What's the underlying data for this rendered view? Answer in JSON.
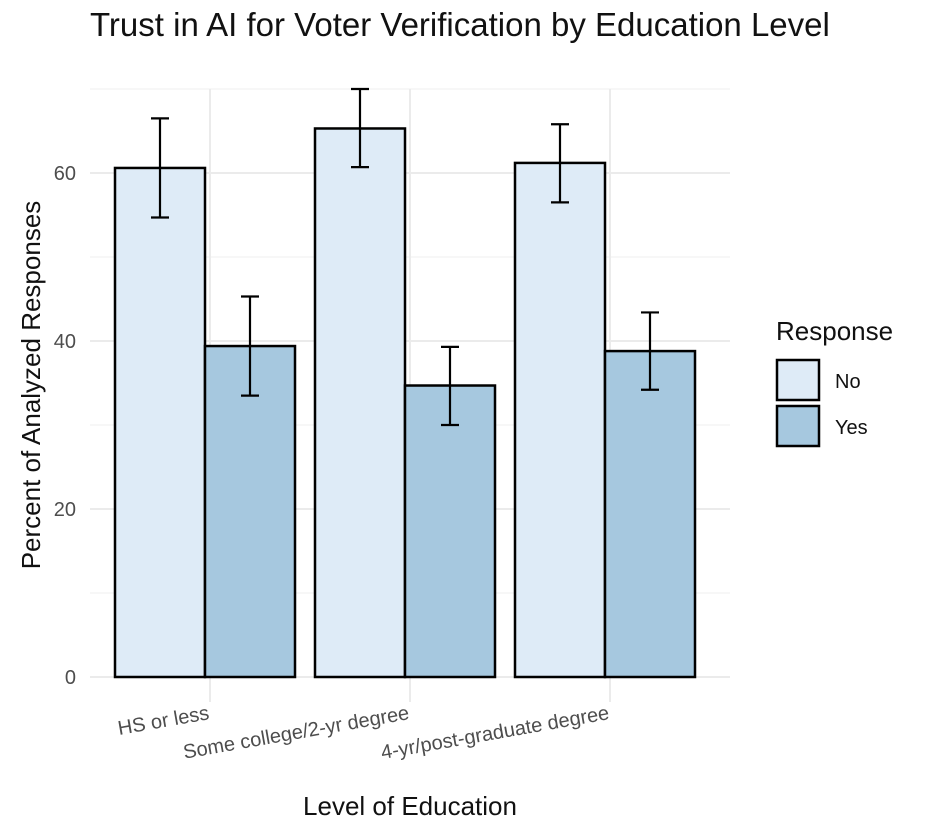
{
  "chart_data": {
    "type": "bar",
    "title": "Trust in AI for Voter Verification by Education Level",
    "xlabel": "Level of Education",
    "ylabel": "Percent of Analyzed Responses",
    "categories": [
      "HS or less",
      "Some college/2-yr degree",
      "4-yr/post-graduate degree"
    ],
    "series": [
      {
        "name": "No",
        "color": "#deebf7",
        "values": [
          60.6,
          65.3,
          61.2
        ],
        "error_low": [
          54.7,
          60.7,
          56.5
        ],
        "error_high": [
          66.5,
          70.0,
          65.8
        ]
      },
      {
        "name": "Yes",
        "color": "#a6c8df",
        "values": [
          39.4,
          34.7,
          38.8
        ],
        "error_low": [
          33.5,
          30.0,
          34.2
        ],
        "error_high": [
          45.3,
          39.3,
          43.4
        ]
      }
    ],
    "y_ticks": [
      "0",
      "20",
      "40",
      "60"
    ],
    "ylim": [
      0,
      70
    ],
    "grid": true,
    "legend": {
      "title": "Response",
      "position": "right"
    }
  }
}
